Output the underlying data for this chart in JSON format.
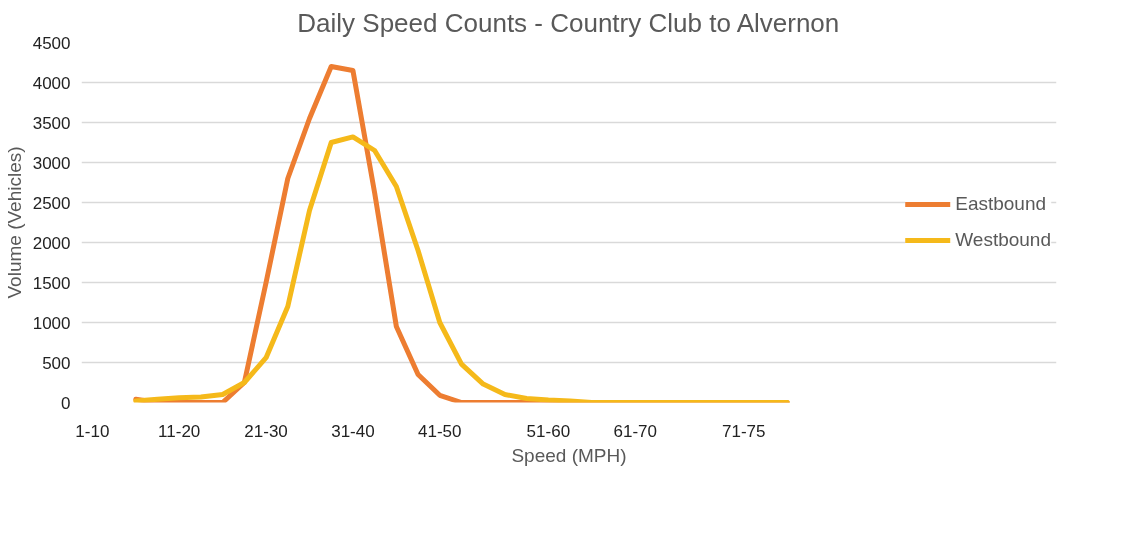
{
  "chart_data": {
    "type": "line",
    "title": "Daily Speed Counts - Country Club to Alvernon",
    "xlabel": "Speed (MPH)",
    "ylabel": "Volume (Vehicles)",
    "categories": [
      "1-10",
      null,
      null,
      null,
      "11-20",
      null,
      null,
      null,
      "21-30",
      null,
      null,
      null,
      "31-40",
      null,
      null,
      null,
      "41-50",
      null,
      null,
      null,
      null,
      "51-60",
      null,
      null,
      null,
      "61-70",
      null,
      null,
      null,
      null,
      "71-75",
      null,
      null,
      null,
      null
    ],
    "ylim": [
      0,
      4500
    ],
    "yticks": [
      0,
      500,
      1000,
      1500,
      2000,
      2500,
      3000,
      3500,
      4000,
      4500
    ],
    "grid": "y",
    "legend": "right",
    "line_style": "solid",
    "series": [
      {
        "name": "Eastbound",
        "color": "#ed7d31",
        "values": [
          null,
          null,
          40,
          0,
          0,
          0,
          0,
          250,
          1500,
          2800,
          3550,
          4200,
          4150,
          2620,
          950,
          350,
          90,
          0,
          0,
          0,
          0,
          0,
          0,
          0,
          0,
          0,
          0,
          0,
          0,
          0,
          0,
          0,
          0,
          null,
          null
        ]
      },
      {
        "name": "Westbound",
        "color": "#f5b91a",
        "values": [
          null,
          null,
          20,
          40,
          60,
          70,
          100,
          250,
          560,
          1200,
          2400,
          3250,
          3320,
          3150,
          2700,
          1900,
          1000,
          480,
          230,
          100,
          50,
          30,
          20,
          0,
          0,
          0,
          0,
          0,
          0,
          0,
          0,
          0,
          0,
          null,
          null
        ]
      }
    ]
  }
}
